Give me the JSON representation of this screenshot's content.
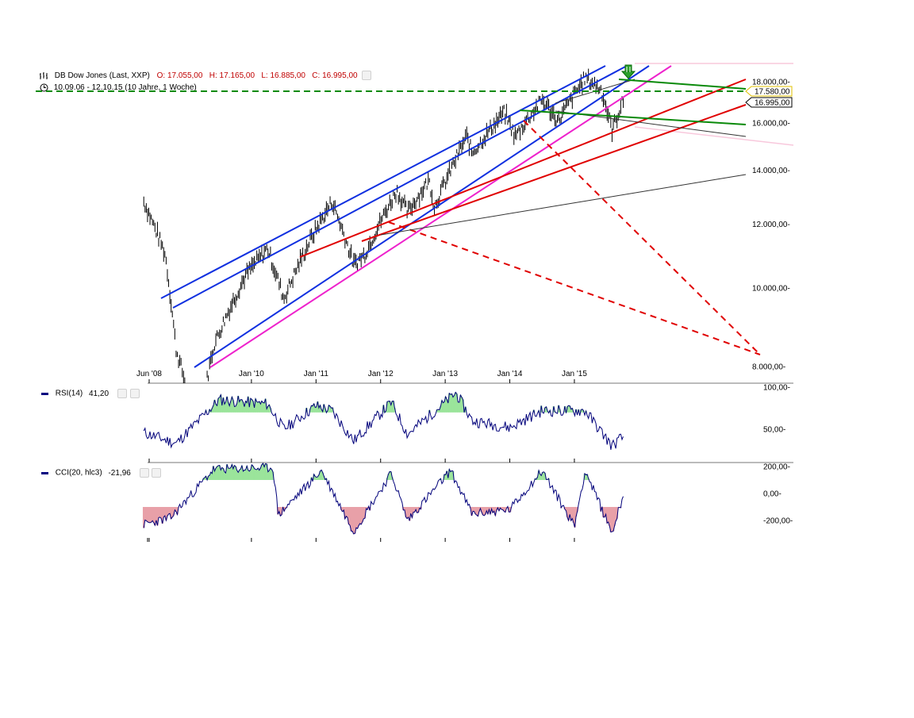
{
  "header": {
    "title": "DB Dow Jones (Last, XXP)",
    "ohlc": "O: 17.055,00   H: 17.165,00   L: 16.885,00   C: 16.995,00",
    "range": "10.09.06 - 12.10.15 (10 Jahre, 1 Woche)"
  },
  "price_flags": {
    "dashed_level": "17.580,00",
    "last_close": "16.995,00"
  },
  "rsi_panel": {
    "label": "RSI(14)",
    "value": "41,20"
  },
  "cci_panel": {
    "label": "CCI(20, hlc3)",
    "value": "-21,96"
  },
  "colors": {
    "blue_channel": "#1030e0",
    "red_trend": "#e00000",
    "green_level": "#0a8a0a",
    "magenta_trend": "#ee22cc",
    "indicator_line": "#00007a",
    "rsi_fill": "#9be49b",
    "cci_neg_fill": "#e8a0a8"
  },
  "chart_data": [
    {
      "type": "ohlc",
      "name": "price",
      "title": "DB Dow Jones (Last, XXP)",
      "scale": "log",
      "ylim": [
        8000,
        18500
      ],
      "yticks": [
        "18.000,00",
        "16.000,00",
        "14.000,00",
        "12.000,00",
        "10.000,00",
        "8.000,00"
      ],
      "ytick_values": [
        18000,
        16000,
        14000,
        12000,
        10000,
        8000
      ],
      "xticks": [
        "Jun '08",
        "Jan '10",
        "Jan '11",
        "Jan '12",
        "Jan '13",
        "Jan '14",
        "Jan '15"
      ],
      "xtick_dates": [
        "2008-06",
        "2010-01",
        "2011-01",
        "2012-01",
        "2013-01",
        "2014-01",
        "2015-01"
      ],
      "key_points": [
        {
          "x": "2008-05",
          "y": 12800
        },
        {
          "x": "2008-09",
          "y": 11000
        },
        {
          "x": "2008-11",
          "y": 8400
        },
        {
          "x": "2009-03",
          "y": 6600
        },
        {
          "x": "2009-06",
          "y": 8500
        },
        {
          "x": "2009-12",
          "y": 10400
        },
        {
          "x": "2010-04",
          "y": 11200
        },
        {
          "x": "2010-07",
          "y": 9700
        },
        {
          "x": "2010-12",
          "y": 11500
        },
        {
          "x": "2011-04",
          "y": 12800
        },
        {
          "x": "2011-08",
          "y": 10700
        },
        {
          "x": "2011-10",
          "y": 11000
        },
        {
          "x": "2012-04",
          "y": 13200
        },
        {
          "x": "2012-06",
          "y": 12400
        },
        {
          "x": "2012-10",
          "y": 13600
        },
        {
          "x": "2012-11",
          "y": 12600
        },
        {
          "x": "2013-05",
          "y": 15400
        },
        {
          "x": "2013-06",
          "y": 14700
        },
        {
          "x": "2013-12",
          "y": 16500
        },
        {
          "x": "2014-02",
          "y": 15400
        },
        {
          "x": "2014-07",
          "y": 17100
        },
        {
          "x": "2014-10",
          "y": 16100
        },
        {
          "x": "2015-03",
          "y": 18200
        },
        {
          "x": "2015-06",
          "y": 17600
        },
        {
          "x": "2015-08",
          "y": 15700
        },
        {
          "x": "2015-10",
          "y": 16995
        }
      ]
    },
    {
      "type": "line",
      "name": "RSI(14)",
      "ylim": [
        20,
        100
      ],
      "yticks": [
        "100,00",
        "50,00"
      ],
      "ytick_values": [
        100,
        50
      ],
      "last_value": 41.2,
      "key_points": [
        {
          "x": "2008-05",
          "y": 46
        },
        {
          "x": "2008-11",
          "y": 33
        },
        {
          "x": "2009-07",
          "y": 85
        },
        {
          "x": "2010-04",
          "y": 80
        },
        {
          "x": "2010-07",
          "y": 50
        },
        {
          "x": "2011-01",
          "y": 78
        },
        {
          "x": "2011-04",
          "y": 72
        },
        {
          "x": "2011-08",
          "y": 36
        },
        {
          "x": "2012-03",
          "y": 82
        },
        {
          "x": "2012-06",
          "y": 44
        },
        {
          "x": "2013-03",
          "y": 93
        },
        {
          "x": "2013-06",
          "y": 60
        },
        {
          "x": "2014-01",
          "y": 52
        },
        {
          "x": "2014-07",
          "y": 72
        },
        {
          "x": "2015-03",
          "y": 72
        },
        {
          "x": "2015-08",
          "y": 30
        },
        {
          "x": "2015-10",
          "y": 41.2
        }
      ]
    },
    {
      "type": "line",
      "name": "CCI(20, hlc3)",
      "ylim": [
        -300,
        250
      ],
      "yticks": [
        "200,00",
        "0,00",
        "-200,00"
      ],
      "ytick_values": [
        200,
        0,
        -200
      ],
      "last_value": -21.96,
      "key_points": [
        {
          "x": "2008-05",
          "y": -230
        },
        {
          "x": "2008-10",
          "y": -180
        },
        {
          "x": "2009-06",
          "y": 180
        },
        {
          "x": "2010-05",
          "y": 190
        },
        {
          "x": "2010-06",
          "y": -160
        },
        {
          "x": "2011-02",
          "y": 170
        },
        {
          "x": "2011-08",
          "y": -280
        },
        {
          "x": "2012-03",
          "y": 150
        },
        {
          "x": "2012-06",
          "y": -200
        },
        {
          "x": "2013-02",
          "y": 170
        },
        {
          "x": "2013-06",
          "y": -150
        },
        {
          "x": "2014-01",
          "y": -120
        },
        {
          "x": "2014-07",
          "y": 170
        },
        {
          "x": "2015-01",
          "y": -240
        },
        {
          "x": "2015-03",
          "y": 170
        },
        {
          "x": "2015-08",
          "y": -290
        },
        {
          "x": "2015-10",
          "y": -21.96
        }
      ]
    }
  ]
}
